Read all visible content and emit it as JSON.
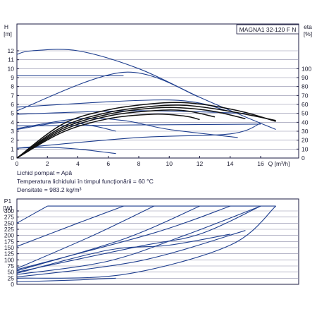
{
  "colors": {
    "axis": "#1a1a40",
    "navy": "#1f3f8f",
    "black": "#111111",
    "grid_text": "#1a1a2e"
  },
  "chart_data": [
    {
      "id": "head",
      "type": "line",
      "title": "MAGNA1 32-120 F N",
      "ylabel": "H",
      "yunit": "[m]",
      "ylabel_right": "eta",
      "yunit_right": "[%]",
      "xlabel": "Q",
      "xunit": "[m³/h]",
      "xlim": [
        0,
        18
      ],
      "ylim": [
        0,
        13
      ],
      "ylim_right": [
        0,
        130
      ],
      "x_ticks": [
        0,
        2,
        4,
        6,
        8,
        10,
        12,
        14,
        16
      ],
      "y_ticks": [
        0,
        1,
        2,
        3,
        4,
        5,
        6,
        7,
        8,
        9,
        10,
        11,
        12
      ],
      "y_ticks_right": [
        0,
        10,
        20,
        30,
        40,
        50,
        60,
        70,
        80,
        90,
        100
      ],
      "grid": "horizontal",
      "series": [
        {
          "role": "max-curve",
          "color": "navy",
          "points": [
            [
              0,
              11.6
            ],
            [
              1,
              12
            ],
            [
              4,
              12
            ],
            [
              8,
              10
            ],
            [
              12,
              6.8
            ],
            [
              15,
              4.6
            ],
            [
              17,
              3.2
            ]
          ]
        },
        {
          "role": "proportional-line-upper",
          "color": "navy",
          "points": [
            [
              0,
              5.3
            ],
            [
              7,
              9.6
            ],
            [
              12,
              6.8
            ]
          ]
        },
        {
          "role": "constant-9",
          "color": "navy",
          "points": [
            [
              0,
              9.2
            ],
            [
              7,
              9.2
            ]
          ]
        },
        {
          "role": "constant-6.5",
          "color": "navy",
          "points": [
            [
              0,
              5.7
            ],
            [
              10,
              6.5
            ],
            [
              14,
              5.2
            ]
          ]
        },
        {
          "role": "constant-5",
          "color": "navy",
          "points": [
            [
              0,
              4.9
            ],
            [
              8,
              5.3
            ],
            [
              15,
              5.0
            ]
          ]
        },
        {
          "role": "constant-3.5",
          "color": "navy",
          "points": [
            [
              0,
              3.6
            ],
            [
              8,
              3.7
            ],
            [
              16,
              3.8
            ]
          ]
        },
        {
          "role": "prop-low",
          "color": "navy",
          "points": [
            [
              0,
              1.1
            ],
            [
              8,
              2.3
            ],
            [
              14,
              2.7
            ],
            [
              16,
              3.9
            ]
          ]
        },
        {
          "role": "min-curve",
          "color": "navy",
          "points": [
            [
              0,
              1.1
            ],
            [
              2,
              1.2
            ],
            [
              4,
              1.0
            ],
            [
              6.5,
              0.5
            ]
          ]
        },
        {
          "role": "mid-curve-a",
          "color": "navy",
          "points": [
            [
              0,
              3.3
            ],
            [
              4,
              4.4
            ],
            [
              7,
              4.2
            ],
            [
              10,
              3.2
            ],
            [
              14.5,
              2.3
            ]
          ]
        },
        {
          "role": "mid-curve-b",
          "color": "navy",
          "points": [
            [
              0,
              3.2
            ],
            [
              3,
              4.0
            ],
            [
              5,
              3.6
            ],
            [
              6.5,
              3.0
            ]
          ]
        },
        {
          "role": "eta-1",
          "color": "black",
          "points": [
            [
              0,
              0
            ],
            [
              3,
              3.8
            ],
            [
              6,
              5.4
            ],
            [
              9,
              6.1
            ],
            [
              11,
              6.2
            ],
            [
              13,
              5.8
            ],
            [
              15,
              5.1
            ],
            [
              17,
              4.1
            ]
          ]
        },
        {
          "role": "eta-2",
          "color": "black",
          "points": [
            [
              0,
              0
            ],
            [
              3,
              3.5
            ],
            [
              6,
              5.1
            ],
            [
              9,
              5.8
            ],
            [
              11,
              5.9
            ],
            [
              13,
              5.5
            ],
            [
              15,
              4.9
            ],
            [
              17,
              4.2
            ]
          ]
        },
        {
          "role": "eta-3",
          "color": "black",
          "points": [
            [
              0,
              0
            ],
            [
              3,
              3.3
            ],
            [
              6,
              4.9
            ],
            [
              9,
              5.6
            ],
            [
              11,
              5.6
            ],
            [
              13,
              5.2
            ],
            [
              15,
              4.4
            ]
          ]
        },
        {
          "role": "eta-4",
          "color": "black",
          "points": [
            [
              0,
              0
            ],
            [
              3,
              3.1
            ],
            [
              6,
              4.7
            ],
            [
              9,
              5.3
            ],
            [
              11,
              5.3
            ],
            [
              13,
              4.6
            ]
          ]
        },
        {
          "role": "eta-5",
          "color": "black",
          "points": [
            [
              0,
              0
            ],
            [
              3,
              2.9
            ],
            [
              6,
              4.4
            ],
            [
              9,
              4.9
            ],
            [
              11,
              4.7
            ],
            [
              12,
              4.3
            ]
          ]
        }
      ]
    },
    {
      "id": "power",
      "type": "line",
      "ylabel": "P1",
      "yunit": "[W]",
      "xlim": [
        0,
        18
      ],
      "ylim": [
        0,
        320
      ],
      "y_ticks": [
        0,
        25,
        50,
        75,
        100,
        125,
        150,
        175,
        200,
        225,
        250,
        275,
        300
      ],
      "grid": "horizontal",
      "series": [
        {
          "role": "p-max-cap",
          "color": "navy",
          "points": [
            [
              2,
              320
            ],
            [
              17,
              320
            ]
          ]
        },
        {
          "role": "p-a",
          "color": "navy",
          "points": [
            [
              0,
              250
            ],
            [
              1,
              285
            ],
            [
              2,
              320
            ]
          ]
        },
        {
          "role": "p-b",
          "color": "navy",
          "points": [
            [
              0,
              155
            ],
            [
              4,
              250
            ],
            [
              7,
              320
            ]
          ]
        },
        {
          "role": "p-c",
          "color": "navy",
          "points": [
            [
              0,
              65
            ],
            [
              5,
              200
            ],
            [
              9,
              320
            ]
          ]
        },
        {
          "role": "p-d",
          "color": "navy",
          "points": [
            [
              0,
              55
            ],
            [
              7,
              185
            ],
            [
              12,
              320
            ]
          ]
        },
        {
          "role": "p-e",
          "color": "navy",
          "points": [
            [
              0,
              60
            ],
            [
              9,
              210
            ],
            [
              14,
              320
            ]
          ]
        },
        {
          "role": "p-f",
          "color": "navy",
          "points": [
            [
              0,
              50
            ],
            [
              8,
              155
            ],
            [
              12,
              205
            ],
            [
              16,
              320
            ]
          ]
        },
        {
          "role": "p-g",
          "color": "navy",
          "points": [
            [
              0,
              45
            ],
            [
              6,
              140
            ],
            [
              10,
              160
            ],
            [
              14,
              205
            ]
          ]
        },
        {
          "role": "p-h",
          "color": "navy",
          "points": [
            [
              0,
              40
            ],
            [
              6,
              95
            ],
            [
              11,
              200
            ],
            [
              16,
              320
            ]
          ]
        },
        {
          "role": "p-i",
          "color": "navy",
          "points": [
            [
              0,
              30
            ],
            [
              8,
              95
            ],
            [
              15,
              220
            ]
          ]
        },
        {
          "role": "p-j",
          "color": "navy",
          "points": [
            [
              0,
              25
            ],
            [
              7,
              40
            ],
            [
              14,
              160
            ],
            [
              17,
              320
            ]
          ]
        },
        {
          "role": "p-min",
          "color": "navy",
          "points": [
            [
              0,
              10
            ],
            [
              4,
              18
            ],
            [
              6.5,
              25
            ]
          ]
        }
      ]
    }
  ],
  "info": {
    "line1": "Lichid pompat = Apă",
    "line2": "Temperatura lichidului în timpul funcționării = 60 °C",
    "line3": "Densitate = 983.2 kg/m³"
  }
}
